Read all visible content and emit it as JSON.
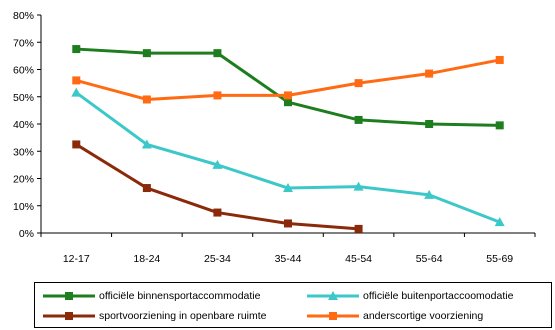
{
  "chart_data": {
    "type": "line",
    "categories": [
      "12-17",
      "18-24",
      "25-34",
      "35-44",
      "45-54",
      "55-64",
      "55-69"
    ],
    "y_ticks": [
      "0%",
      "10%",
      "20%",
      "30%",
      "40%",
      "50%",
      "60%",
      "70%",
      "80%"
    ],
    "ylim": [
      0,
      80
    ],
    "grid": false,
    "legend_position": "bottom",
    "series": [
      {
        "name": "officiële binnensportaccommodatie",
        "color": "#1e7d1e",
        "marker": "square",
        "values": [
          67.5,
          66,
          66,
          48,
          41.5,
          40,
          39.5
        ]
      },
      {
        "name": "officiële buitenportaccoomodatie",
        "color": "#3cc8c8",
        "marker": "triangle",
        "values": [
          51.5,
          32.5,
          25,
          16.5,
          17,
          14,
          4
        ]
      },
      {
        "name": "sportvoorziening in openbare ruimte",
        "color": "#8b2a0a",
        "marker": "square",
        "values": [
          32.5,
          16.5,
          7.5,
          3.5,
          1.5,
          null,
          null
        ]
      },
      {
        "name": "anderscortige voorziening",
        "color": "#ff6a13",
        "marker": "square",
        "values": [
          56,
          49,
          50.5,
          50.5,
          55,
          58.5,
          63.5
        ]
      }
    ]
  }
}
